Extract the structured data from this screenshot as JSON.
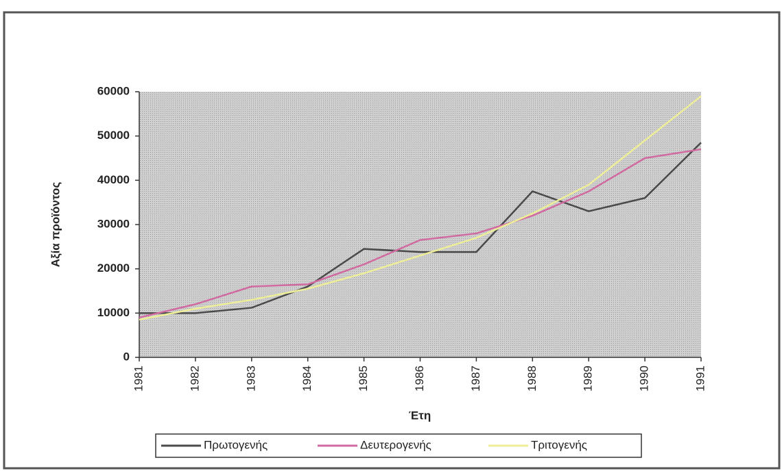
{
  "chart_data": {
    "type": "line",
    "xlabel": "Έτη",
    "ylabel": "Αξία προϊόντος",
    "categories": [
      "1981",
      "1982",
      "1983",
      "1984",
      "1985",
      "1986",
      "1987",
      "1988",
      "1989",
      "1990",
      "1991"
    ],
    "series": [
      {
        "name": "Πρωτογενής",
        "color": "#4a4a4a",
        "values": [
          10000,
          10000,
          11200,
          16000,
          24500,
          23800,
          23800,
          37500,
          33000,
          36000,
          48500
        ]
      },
      {
        "name": "Δευτερογενής",
        "color": "#d06aa0",
        "values": [
          9000,
          12000,
          16000,
          16500,
          21000,
          26500,
          28000,
          32000,
          37500,
          45000,
          47000
        ]
      },
      {
        "name": "Τριτογενής",
        "color": "#eeee99",
        "values": [
          8500,
          11000,
          13000,
          15500,
          19000,
          23000,
          27000,
          32500,
          39000,
          49000,
          59000
        ]
      }
    ],
    "ylim": [
      0,
      60000
    ],
    "yticks": [
      0,
      10000,
      20000,
      30000,
      40000,
      50000,
      60000
    ],
    "legend": "bottom"
  }
}
